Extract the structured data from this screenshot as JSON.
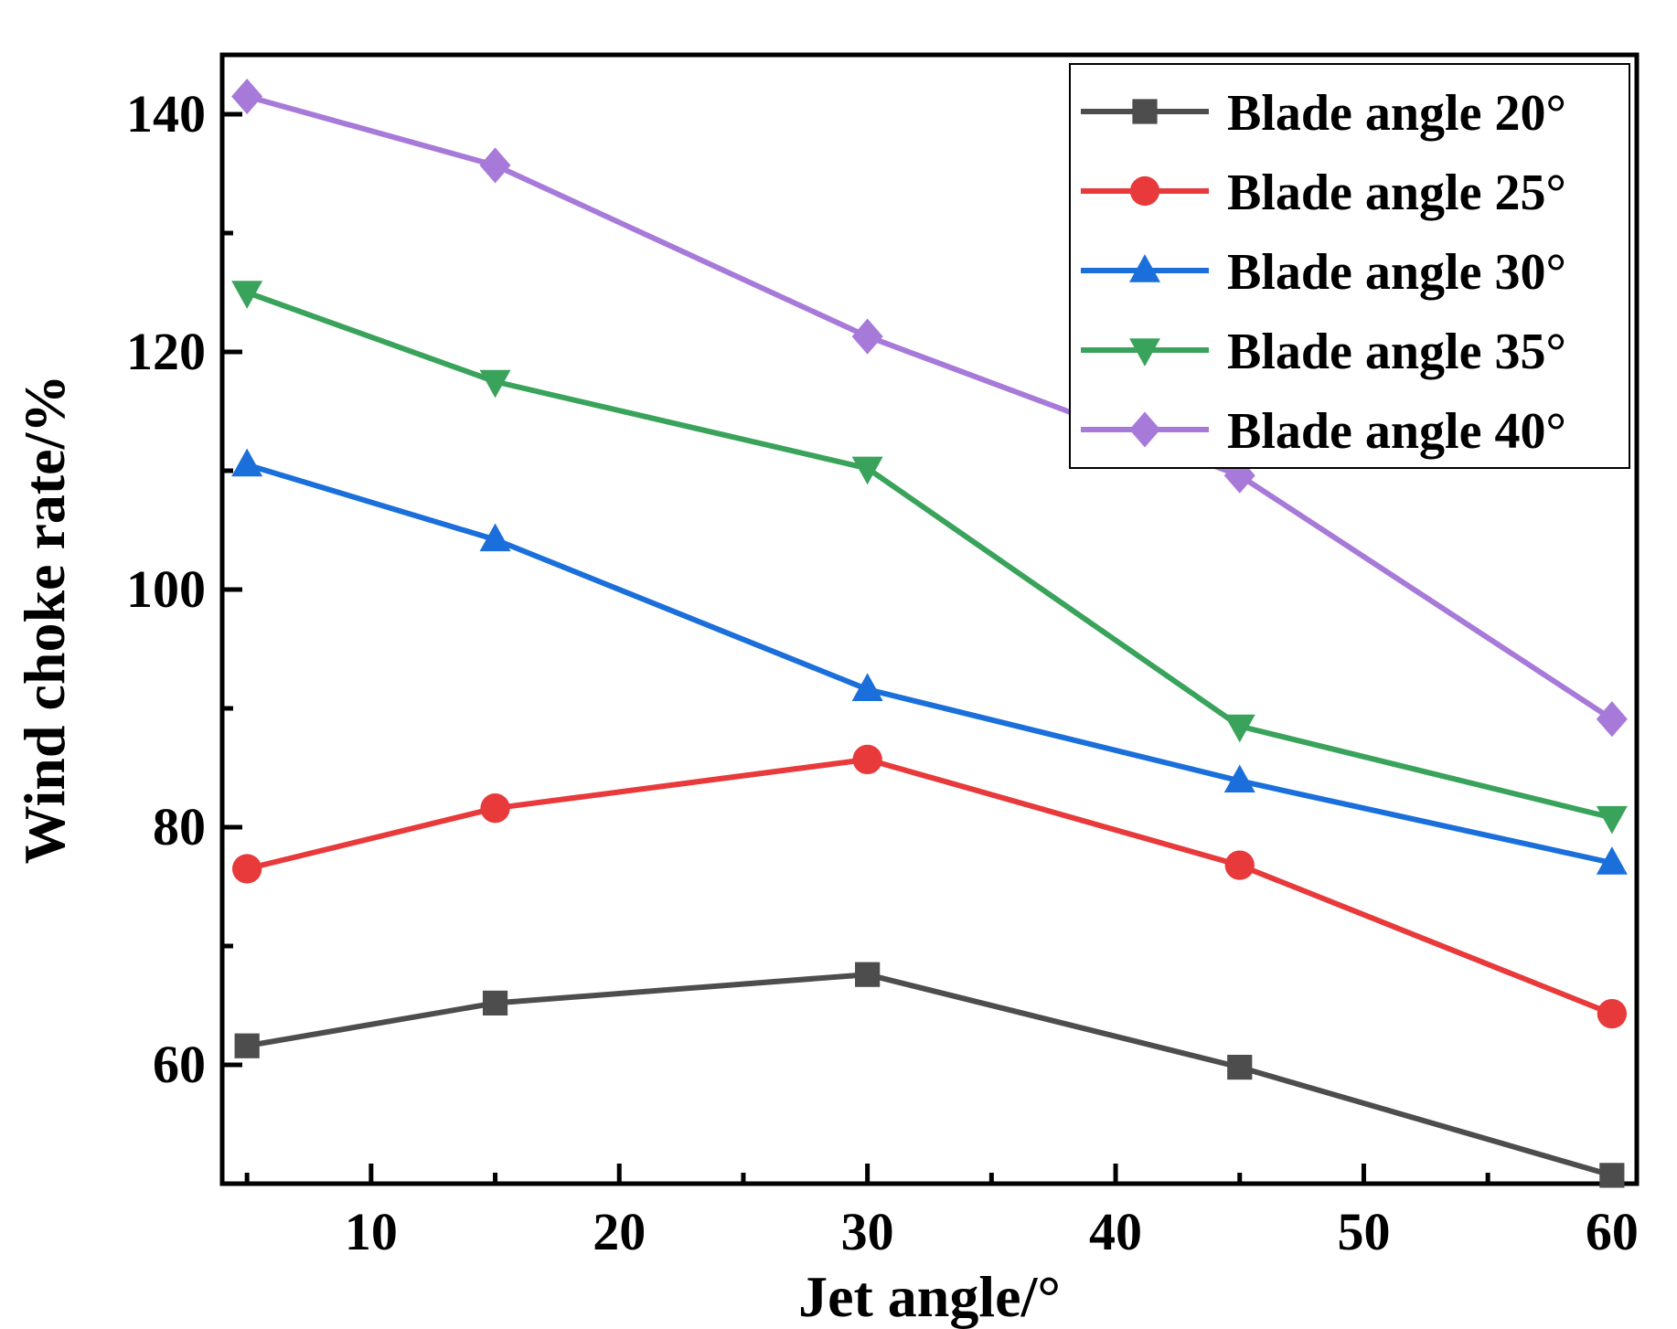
{
  "chart_data": {
    "type": "line",
    "title": "",
    "xlabel": "Jet angle/°",
    "ylabel": "Wind choke rate/%",
    "x": [
      5,
      15,
      30,
      45,
      60
    ],
    "xlim": [
      4,
      61
    ],
    "ylim": [
      50,
      145
    ],
    "xticks": [
      10,
      20,
      30,
      40,
      50,
      60
    ],
    "xticks_minor": [
      5,
      15,
      25,
      35,
      45,
      55
    ],
    "yticks": [
      60,
      80,
      100,
      120,
      140
    ],
    "yticks_minor": [
      70,
      90,
      110,
      130
    ],
    "grid": false,
    "legend_position": "top-right",
    "series": [
      {
        "name": "Blade angle 20°",
        "color": "#4d4d4d",
        "marker": "square",
        "values": [
          61.6,
          65.2,
          67.6,
          59.8,
          50.7
        ]
      },
      {
        "name": "Blade angle 25°",
        "color": "#e8393b",
        "marker": "circle",
        "values": [
          76.5,
          81.6,
          85.7,
          76.8,
          64.3
        ]
      },
      {
        "name": "Blade angle 30°",
        "color": "#1a6fdb",
        "marker": "triangle-up",
        "values": [
          110.5,
          104.2,
          91.6,
          83.9,
          77.0
        ]
      },
      {
        "name": "Blade angle 35°",
        "color": "#3aa35b",
        "marker": "triangle-down",
        "values": [
          125.0,
          117.5,
          110.2,
          88.5,
          80.8
        ]
      },
      {
        "name": "Blade angle 40°",
        "color": "#a77ad9",
        "marker": "diamond",
        "values": [
          141.5,
          135.7,
          121.3,
          109.6,
          89.1
        ]
      }
    ]
  }
}
